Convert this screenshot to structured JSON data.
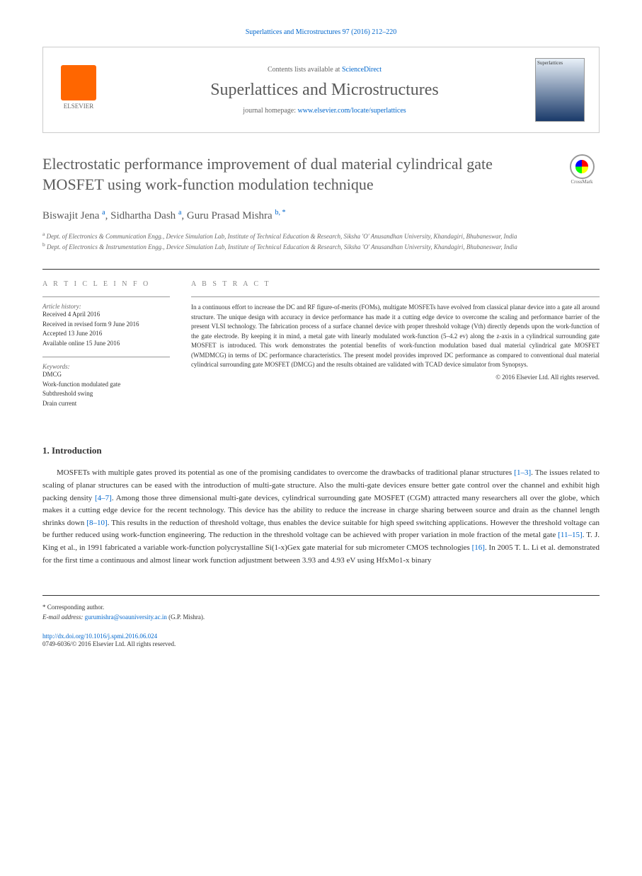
{
  "header": {
    "citation": "Superlattices and Microstructures 97 (2016) 212–220",
    "contents_prefix": "Contents lists available at ",
    "contents_link": "ScienceDirect",
    "journal_name": "Superlattices and Microstructures",
    "homepage_prefix": "journal homepage: ",
    "homepage_url": "www.elsevier.com/locate/superlattices",
    "elsevier": "ELSEVIER",
    "cover_title": "Superlattices"
  },
  "crossmark": "CrossMark",
  "title": "Electrostatic performance improvement of dual material cylindrical gate MOSFET using work-function modulation technique",
  "authors": {
    "list": "Biswajit Jena ",
    "a1_sup": "a",
    "sep1": ", Sidhartha Dash ",
    "a2_sup": "a",
    "sep2": ", Guru Prasad Mishra ",
    "a3_sup": "b, *"
  },
  "affiliations": {
    "a": "Dept. of Electronics & Communication Engg., Device Simulation Lab, Institute of Technical Education & Research, Siksha 'O' Anusandhan University, Khandagiri, Bhubaneswar, India",
    "b": "Dept. of Electronics & Instrumentation Engg., Device Simulation Lab, Institute of Technical Education & Research, Siksha 'O' Anusandhan University, Khandagiri, Bhubaneswar, India"
  },
  "article_info": {
    "heading": "A R T I C L E  I N F O",
    "history_label": "Article history:",
    "received": "Received 4 April 2016",
    "revised": "Received in revised form 9 June 2016",
    "accepted": "Accepted 13 June 2016",
    "online": "Available online 15 June 2016",
    "keywords_label": "Keywords:",
    "kw1": "DMCG",
    "kw2": "Work-function modulated gate",
    "kw3": "Subthreshold swing",
    "kw4": "Drain current"
  },
  "abstract": {
    "heading": "A B S T R A C T",
    "text": "In a continuous effort to increase the DC and RF figure-of-merits (FOMs), multigate MOSFETs have evolved from classical planar device into a gate all around structure. The unique design with accuracy in device performance has made it a cutting edge device to overcome the scaling and performance barrier of the present VLSI technology. The fabrication process of a surface channel device with proper threshold voltage (Vth) directly depends upon the work-function of the gate electrode. By keeping it in mind, a metal gate with linearly modulated work-function (5–4.2 ev) along the z-axis in a cylindrical surrounding gate MOSFET is introduced. This work demonstrates the potential benefits of work-function modulation based dual material cylindrical gate MOSFET (WMDMCG) in terms of DC performance characteristics. The present model provides improved DC performance as compared to conventional dual material cylindrical surrounding gate MOSFET (DMCG) and the results obtained are validated with TCAD device simulator from Synopsys.",
    "copyright": "© 2016 Elsevier Ltd. All rights reserved."
  },
  "intro": {
    "heading": "1. Introduction",
    "p1_a": "MOSFETs with multiple gates proved its potential as one of the promising candidates to overcome the drawbacks of traditional planar structures ",
    "ref1": "[1–3]",
    "p1_b": ". The issues related to scaling of planar structures can be eased with the introduction of multi-gate structure. Also the multi-gate devices ensure better gate control over the channel and exhibit high packing density ",
    "ref2": "[4–7]",
    "p1_c": ". Among those three dimensional multi-gate devices, cylindrical surrounding gate MOSFET (CGM) attracted many researchers all over the globe, which makes it a cutting edge device for the recent technology. This device has the ability to reduce the increase in charge sharing between source and drain as the channel length shrinks down ",
    "ref3": "[8–10]",
    "p1_d": ". This results in the reduction of threshold voltage, thus enables the device suitable for high speed switching applications. However the threshold voltage can be further reduced using work-function engineering. The reduction in the threshold voltage can be achieved with proper variation in mole fraction of the metal gate ",
    "ref4": "[11–15]",
    "p1_e": ". T. J. King et al., in 1991 fabricated a variable work-function polycrystalline Si(1-x)Gex gate material for sub micrometer CMOS technologies ",
    "ref5": "[16]",
    "p1_f": ". In 2005 T. L. Li et al. demonstrated for the first time a continuous and almost linear work function adjustment between 3.93 and 4.93 eV using HfxMo1-x binary"
  },
  "footer": {
    "corr": "* Corresponding author.",
    "email_label": "E-mail address: ",
    "email": "gurumishra@soauniversity.ac.in",
    "email_suffix": " (G.P. Mishra).",
    "doi": "http://dx.doi.org/10.1016/j.spmi.2016.06.024",
    "issn": "0749-6036/© 2016 Elsevier Ltd. All rights reserved."
  }
}
